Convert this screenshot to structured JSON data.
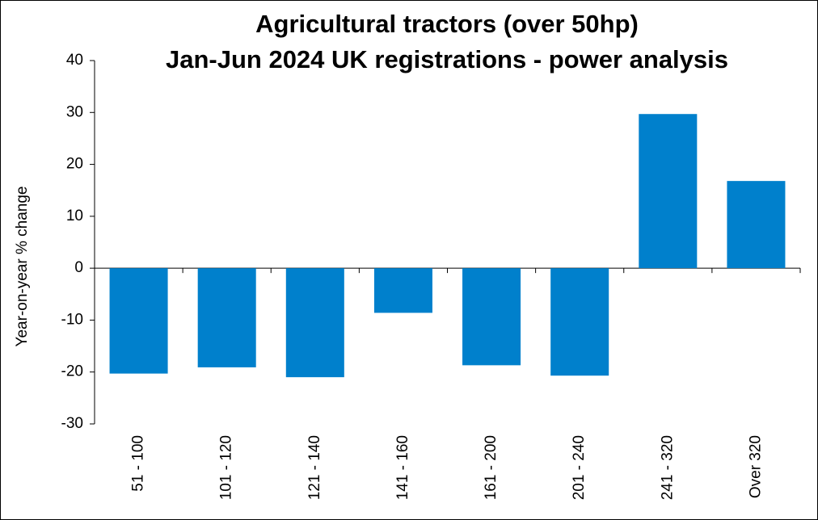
{
  "chart_data": {
    "type": "bar",
    "title": "Agricultural tractors (over 50hp)",
    "subtitle": "Jan-Jun 2024 UK registrations - power analysis",
    "y_label": "Year-on-year  % change",
    "categories": [
      "51 - 100",
      "101 - 120",
      "121 - 140",
      "141 - 160",
      "161 - 200",
      "201 - 240",
      "241 - 320",
      "Over 320"
    ],
    "values": [
      -20.3,
      -19.1,
      -21.0,
      -8.6,
      -18.7,
      -20.7,
      29.7,
      16.8
    ],
    "color": "#0080cc",
    "ylim": [
      -30,
      40
    ],
    "yticks": [
      -30,
      -20,
      -10,
      0,
      10,
      20,
      30,
      40
    ],
    "grid": false
  }
}
